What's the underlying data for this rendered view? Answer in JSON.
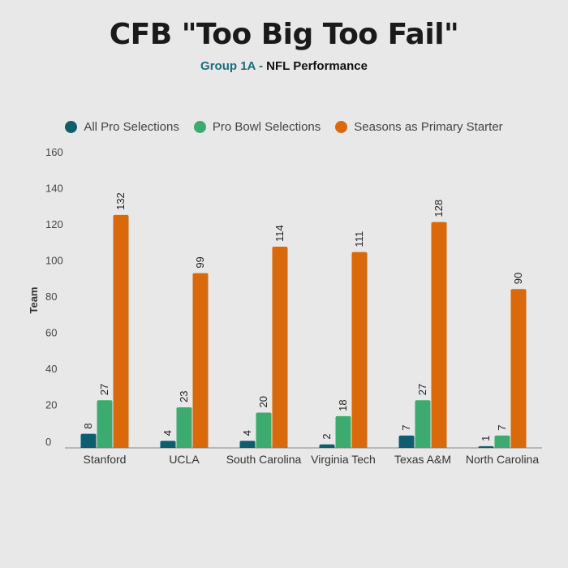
{
  "title": "CFB \"Too Big Too Fail\"",
  "subtitle": {
    "group": "Group 1A",
    "separator": " - ",
    "rest": "NFL Performance"
  },
  "colors": {
    "all_pro": "#0e5e6f",
    "pro_bowl": "#3daa6f",
    "seasons": "#d9690a"
  },
  "chart_data": {
    "type": "bar",
    "categories": [
      "Stanford",
      "UCLA",
      "South Carolina",
      "Virginia Tech",
      "Texas A&M",
      "North Carolina"
    ],
    "series": [
      {
        "name": "All Pro Selections",
        "values": [
          8,
          4,
          4,
          2,
          7,
          1
        ],
        "color": "#0e5e6f"
      },
      {
        "name": "Pro Bowl Selections",
        "values": [
          27,
          23,
          20,
          18,
          27,
          7
        ],
        "color": "#3daa6f"
      },
      {
        "name": "Seasons as Primary Starter",
        "values": [
          132,
          99,
          114,
          111,
          128,
          90
        ],
        "color": "#d9690a"
      }
    ],
    "ylabel": "Team",
    "ylim": [
      0,
      160
    ],
    "yticks": [
      0,
      20,
      40,
      60,
      80,
      100,
      120,
      140,
      160
    ],
    "legend_position": "top-center",
    "grid": false
  }
}
